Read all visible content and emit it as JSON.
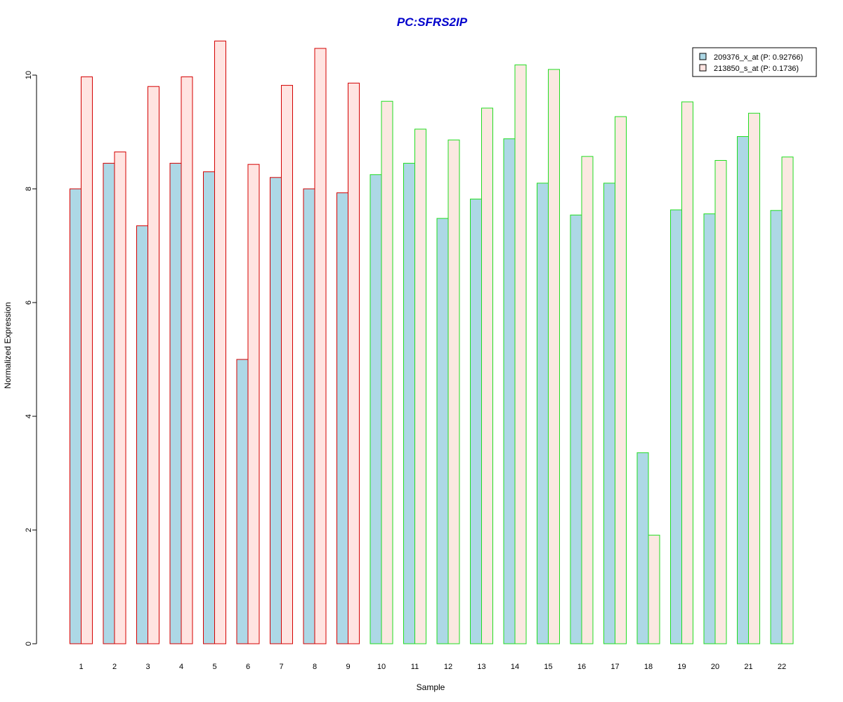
{
  "chart_data": {
    "type": "bar",
    "title": "PC:SFRS2IP",
    "xlabel": "Sample",
    "ylabel": "Normalized Expression",
    "ylim": [
      0,
      10
    ],
    "yticks": [
      "0",
      "2",
      "4",
      "6",
      "8",
      "10"
    ],
    "categories": [
      "1",
      "2",
      "3",
      "4",
      "5",
      "6",
      "7",
      "8",
      "9",
      "10",
      "11",
      "12",
      "13",
      "14",
      "15",
      "16",
      "17",
      "18",
      "19",
      "20",
      "21",
      "22"
    ],
    "series": [
      {
        "name": "209376_x_at (P: 0.92766)",
        "fill": "#add8e6",
        "values": [
          8.0,
          8.45,
          7.35,
          8.45,
          8.3,
          5.0,
          8.2,
          8.0,
          7.93,
          8.25,
          8.45,
          7.48,
          7.82,
          8.88,
          8.1,
          7.54,
          8.1,
          3.36,
          7.63,
          7.56,
          8.92,
          7.62
        ]
      },
      {
        "name": "213850_s_at (P: 0.1736)",
        "fill_red_group": "#ffe4e1",
        "fill_green_group": "#fbe8e1",
        "values": [
          9.97,
          8.65,
          9.8,
          9.97,
          10.6,
          8.43,
          9.82,
          10.47,
          9.86,
          9.54,
          9.05,
          8.86,
          9.42,
          10.18,
          10.1,
          8.57,
          9.27,
          1.91,
          9.53,
          8.5,
          9.33,
          8.56
        ]
      }
    ],
    "group_outline": [
      "red",
      "red",
      "red",
      "red",
      "red",
      "red",
      "red",
      "red",
      "red",
      "green",
      "green",
      "green",
      "green",
      "green",
      "green",
      "green",
      "green",
      "green",
      "green",
      "green",
      "green",
      "green"
    ],
    "colors": {
      "red": "#d40000",
      "green": "#22dd22",
      "title": "#0000cc"
    },
    "grid": false,
    "legend_position": "top-right"
  }
}
